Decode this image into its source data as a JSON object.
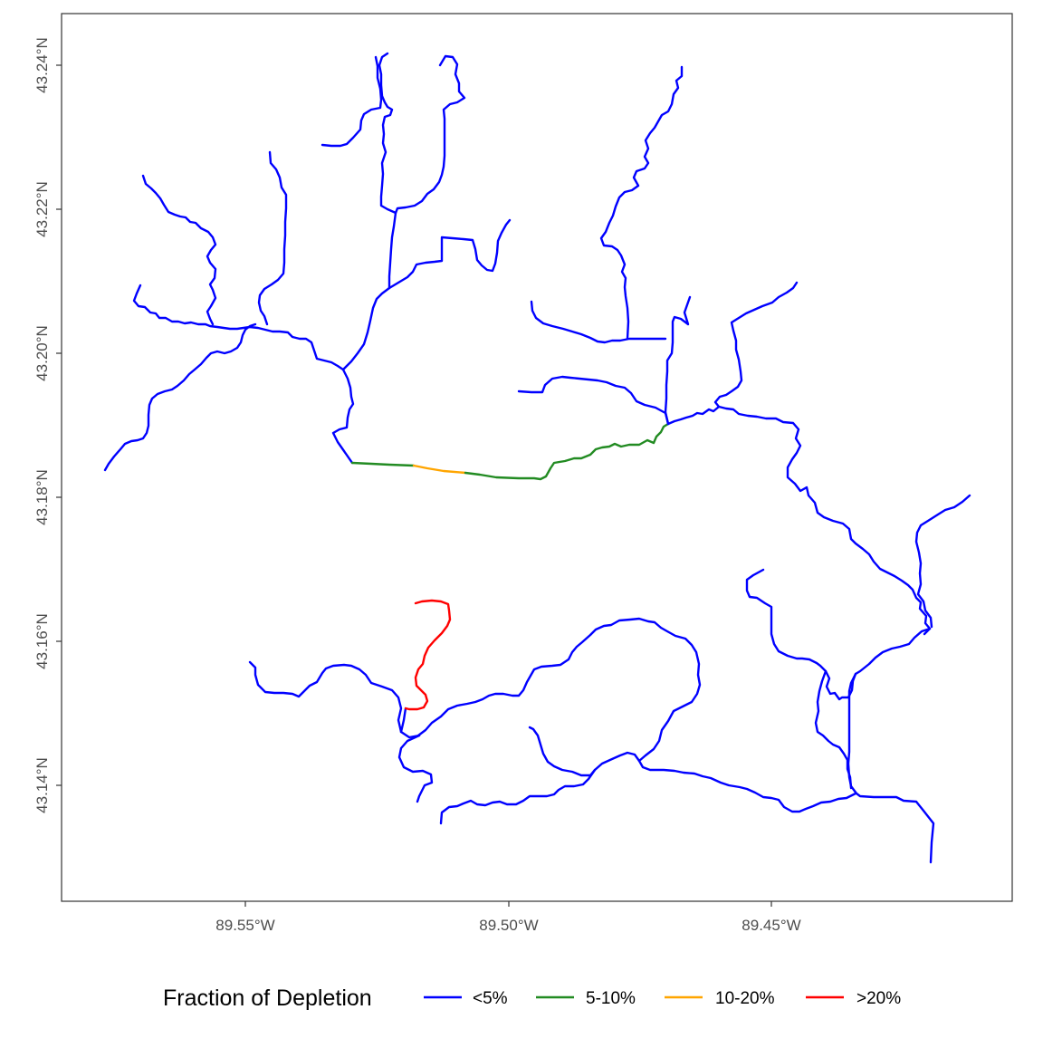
{
  "map": {
    "x_ticks": [
      "89.55°W",
      "89.50°W",
      "89.45°W"
    ],
    "y_ticks": [
      "43.14°N",
      "43.16°N",
      "43.18°N",
      "43.20°N",
      "43.22°N",
      "43.24°N"
    ]
  },
  "legend": {
    "title": "Fraction of Depletion",
    "items": [
      {
        "label": "<5%",
        "color": "#0000ff"
      },
      {
        "label": "5-10%",
        "color": "#228b22"
      },
      {
        "label": "10-20%",
        "color": "#ffa500"
      },
      {
        "label": ">20%",
        "color": "#ff0000"
      }
    ]
  },
  "colors": {
    "lt5": "#0000ff",
    "c5_10": "#228b22",
    "c10_20": "#ffa500",
    "gt20": "#ff0000",
    "axis": "#333333",
    "tick_text": "#4d4d4d"
  }
}
